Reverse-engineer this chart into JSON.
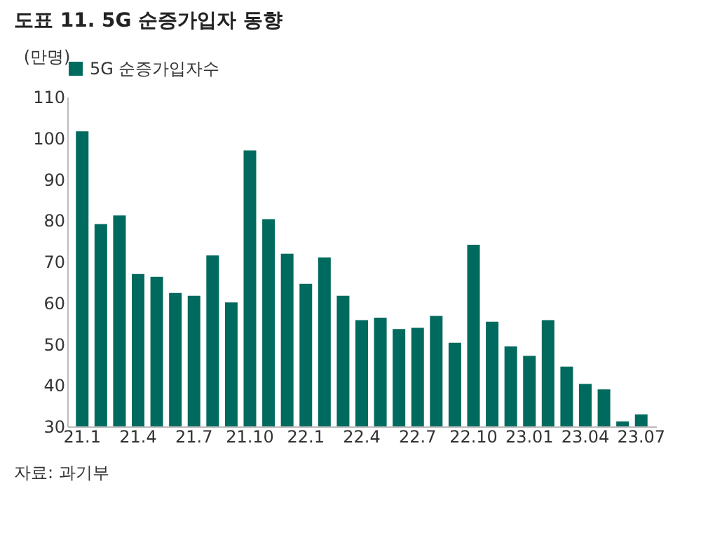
{
  "chart_data": {
    "type": "bar",
    "title": "도표 11. 5G 순증가입자 동향",
    "ylabel": "(만명)",
    "categories": [
      "21.1",
      null,
      null,
      "21.4",
      null,
      null,
      "21.7",
      null,
      null,
      "21.10",
      null,
      null,
      "22.1",
      null,
      null,
      "22.4",
      null,
      null,
      "22.7",
      null,
      null,
      "22.10",
      null,
      null,
      "23.01",
      null,
      null,
      "23.04",
      null,
      null,
      "23.07"
    ],
    "series": [
      {
        "name": "5G 순증가입자수",
        "color": "#006a5e",
        "values": [
          101.6,
          79.1,
          81.2,
          67.0,
          66.3,
          62.4,
          61.7,
          71.5,
          60.1,
          97.0,
          80.3,
          71.9,
          64.6,
          71.0,
          61.7,
          55.8,
          56.4,
          53.6,
          53.9,
          56.8,
          50.3,
          74.1,
          55.4,
          49.4,
          47.1,
          55.8,
          44.5,
          40.3,
          39.0,
          31.2,
          32.9
        ]
      }
    ],
    "ylim": [
      30,
      110
    ],
    "yticks": [
      30,
      40,
      50,
      60,
      70,
      80,
      90,
      100,
      110
    ],
    "grid": false,
    "legend": "top",
    "annotations": [
      "자료: 과기부"
    ]
  }
}
